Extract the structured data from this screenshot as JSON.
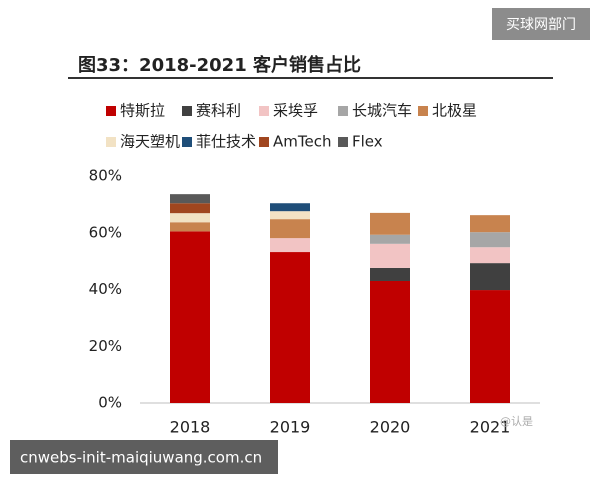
{
  "watermark_badge": "买球网部门",
  "url_overlay": "cnwebs-init-maiqiuwang.com.cn",
  "chart_data": {
    "type": "stacked-bar",
    "title": "图33：2018-2021 客户销售占比",
    "watermark": "@认是",
    "categories": [
      "2018",
      "2019",
      "2020",
      "2021"
    ],
    "series": [
      {
        "name": "特斯拉",
        "color": "#c00000",
        "values": [
          60.5,
          53.2,
          43,
          39.8
        ]
      },
      {
        "name": "赛科利",
        "color": "#404040",
        "values": [
          null,
          null,
          4.6,
          9.5
        ]
      },
      {
        "name": "采埃孚",
        "color": "#f2c4c4",
        "values": [
          null,
          4.9,
          8.5,
          5.6
        ]
      },
      {
        "name": "长城汽车",
        "color": "#a6a6a6",
        "values": [
          null,
          null,
          3.2,
          5.3
        ]
      },
      {
        "name": "北极星",
        "color": "#c8834e",
        "values": [
          3.2,
          6.7,
          7.7,
          6
        ]
      },
      {
        "name": "海天塑机",
        "color": "#f2e2c4",
        "values": [
          3.2,
          2.8,
          null,
          null
        ]
      },
      {
        "name": "菲仕技术",
        "color": "#1f4e79",
        "values": [
          null,
          2.8,
          null,
          null
        ]
      },
      {
        "name": "AmTech",
        "color": "#a0461f",
        "values": [
          3.5,
          null,
          null,
          null
        ]
      },
      {
        "name": "Flex",
        "color": "#595959",
        "values": [
          3.2,
          null,
          null,
          null
        ]
      }
    ],
    "ylim": [
      0,
      80
    ],
    "yticks": [
      {
        "value": 0,
        "label": "0%"
      },
      {
        "value": 20,
        "label": "20%"
      },
      {
        "value": 40,
        "label": "40%"
      },
      {
        "value": 60,
        "label": "60%"
      },
      {
        "value": 80,
        "label": "80%"
      }
    ],
    "grid": false
  }
}
